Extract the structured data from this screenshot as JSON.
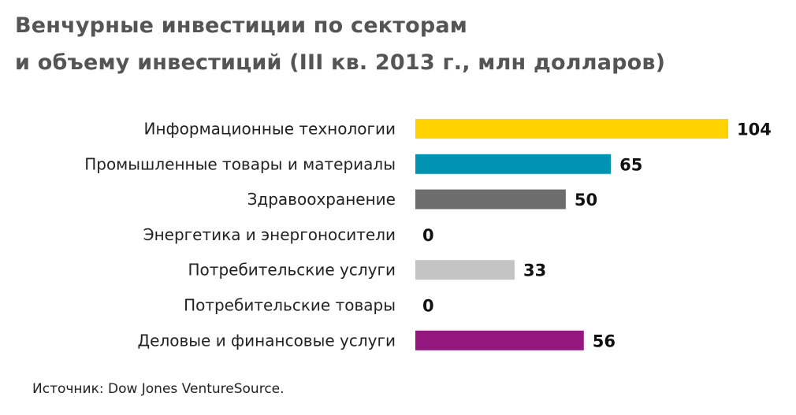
{
  "chart_data": {
    "type": "bar",
    "orientation": "horizontal",
    "title_line1": "Венчурные инвестиции по секторам",
    "title_line2": "и объему инвестиций (III кв. 2013 г., млн долларов)",
    "categories": [
      "Информационные технологии",
      "Промышленные товары и материалы",
      "Здравоохранение",
      "Энергетика и энергоносители",
      "Потребительские услуги",
      "Потребительские товары",
      "Деловые и финансовые услуги"
    ],
    "values": [
      104,
      65,
      50,
      0,
      33,
      0,
      56
    ],
    "colors": [
      "#FFD200",
      "#0093B2",
      "#6D6D6D",
      "#6D6D6D",
      "#C4C4C4",
      "#C4C4C4",
      "#93177E"
    ],
    "xlim": [
      0,
      104
    ],
    "grid": false,
    "source": "Источник: Dow Jones VentureSource."
  }
}
